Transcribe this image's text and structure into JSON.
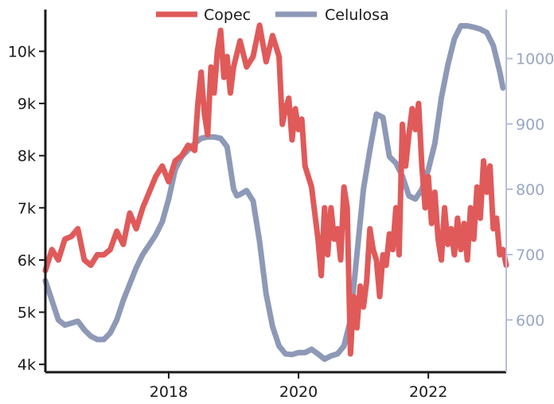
{
  "chart_data": {
    "type": "line",
    "x_range": [
      2016.1,
      2023.2
    ],
    "x_ticks": [
      {
        "value": 2018,
        "label": "2018"
      },
      {
        "value": 2020,
        "label": "2020"
      },
      {
        "value": 2022,
        "label": "2022"
      }
    ],
    "left_axis": {
      "ylim": [
        3850,
        10800
      ],
      "ticks": [
        {
          "value": 4000,
          "label": "4k"
        },
        {
          "value": 5000,
          "label": "5k"
        },
        {
          "value": 6000,
          "label": "6k"
        },
        {
          "value": 7000,
          "label": "7k"
        },
        {
          "value": 8000,
          "label": "8k"
        },
        {
          "value": 9000,
          "label": "9k"
        },
        {
          "value": 10000,
          "label": "10k"
        }
      ],
      "color": "#1a1a1a"
    },
    "right_axis": {
      "ylim": [
        520,
        1075
      ],
      "ticks": [
        {
          "value": 600,
          "label": "600"
        },
        {
          "value": 700,
          "label": "700"
        },
        {
          "value": 800,
          "label": "800"
        },
        {
          "value": 900,
          "label": "900"
        },
        {
          "value": 1000,
          "label": "1000"
        }
      ],
      "color": "#b8bfd6"
    },
    "legend": {
      "placement": "top-center"
    },
    "series": [
      {
        "name": "Copec",
        "axis": "left",
        "color": "#e05a5a",
        "points": [
          [
            2016.1,
            5800
          ],
          [
            2016.2,
            6200
          ],
          [
            2016.3,
            6000
          ],
          [
            2016.4,
            6400
          ],
          [
            2016.5,
            6450
          ],
          [
            2016.6,
            6600
          ],
          [
            2016.7,
            6000
          ],
          [
            2016.8,
            5900
          ],
          [
            2016.9,
            6100
          ],
          [
            2017.0,
            6100
          ],
          [
            2017.1,
            6200
          ],
          [
            2017.2,
            6550
          ],
          [
            2017.3,
            6300
          ],
          [
            2017.4,
            6900
          ],
          [
            2017.5,
            6600
          ],
          [
            2017.6,
            7000
          ],
          [
            2017.7,
            7300
          ],
          [
            2017.8,
            7600
          ],
          [
            2017.9,
            7800
          ],
          [
            2018.0,
            7500
          ],
          [
            2018.1,
            7900
          ],
          [
            2018.2,
            8000
          ],
          [
            2018.3,
            8200
          ],
          [
            2018.4,
            8100
          ],
          [
            2018.45,
            9000
          ],
          [
            2018.5,
            9600
          ],
          [
            2018.55,
            8800
          ],
          [
            2018.6,
            8400
          ],
          [
            2018.65,
            9700
          ],
          [
            2018.7,
            9200
          ],
          [
            2018.75,
            10000
          ],
          [
            2018.8,
            10400
          ],
          [
            2018.85,
            9500
          ],
          [
            2018.9,
            9900
          ],
          [
            2018.95,
            9200
          ],
          [
            2019.0,
            9700
          ],
          [
            2019.1,
            10200
          ],
          [
            2019.2,
            9700
          ],
          [
            2019.3,
            9900
          ],
          [
            2019.4,
            10500
          ],
          [
            2019.5,
            9800
          ],
          [
            2019.6,
            10300
          ],
          [
            2019.7,
            9900
          ],
          [
            2019.75,
            8600
          ],
          [
            2019.8,
            8900
          ],
          [
            2019.85,
            9100
          ],
          [
            2019.9,
            8300
          ],
          [
            2019.95,
            8900
          ],
          [
            2020.0,
            8500
          ],
          [
            2020.05,
            8700
          ],
          [
            2020.1,
            7800
          ],
          [
            2020.2,
            7400
          ],
          [
            2020.3,
            6400
          ],
          [
            2020.35,
            5700
          ],
          [
            2020.4,
            7000
          ],
          [
            2020.45,
            6100
          ],
          [
            2020.5,
            7000
          ],
          [
            2020.55,
            6400
          ],
          [
            2020.6,
            6600
          ],
          [
            2020.65,
            6000
          ],
          [
            2020.7,
            7400
          ],
          [
            2020.75,
            7000
          ],
          [
            2020.8,
            4200
          ],
          [
            2020.85,
            5300
          ],
          [
            2020.9,
            4700
          ],
          [
            2020.95,
            5500
          ],
          [
            2021.0,
            5100
          ],
          [
            2021.05,
            5600
          ],
          [
            2021.1,
            6600
          ],
          [
            2021.15,
            6200
          ],
          [
            2021.2,
            6000
          ],
          [
            2021.25,
            5300
          ],
          [
            2021.3,
            6100
          ],
          [
            2021.35,
            5900
          ],
          [
            2021.4,
            6500
          ],
          [
            2021.45,
            6200
          ],
          [
            2021.5,
            7000
          ],
          [
            2021.55,
            6100
          ],
          [
            2021.6,
            8600
          ],
          [
            2021.65,
            7800
          ],
          [
            2021.7,
            8400
          ],
          [
            2021.75,
            8900
          ],
          [
            2021.8,
            8500
          ],
          [
            2021.85,
            9000
          ],
          [
            2021.9,
            7800
          ],
          [
            2021.95,
            7000
          ],
          [
            2022.0,
            7600
          ],
          [
            2022.05,
            6700
          ],
          [
            2022.1,
            7300
          ],
          [
            2022.15,
            6400
          ],
          [
            2022.2,
            6000
          ],
          [
            2022.25,
            7000
          ],
          [
            2022.3,
            6300
          ],
          [
            2022.35,
            6600
          ],
          [
            2022.4,
            6100
          ],
          [
            2022.45,
            6800
          ],
          [
            2022.5,
            6200
          ],
          [
            2022.55,
            6700
          ],
          [
            2022.6,
            6000
          ],
          [
            2022.65,
            7000
          ],
          [
            2022.7,
            6400
          ],
          [
            2022.75,
            7400
          ],
          [
            2022.8,
            6800
          ],
          [
            2022.85,
            7900
          ],
          [
            2022.9,
            7300
          ],
          [
            2022.95,
            7800
          ],
          [
            2023.0,
            6600
          ],
          [
            2023.05,
            6800
          ],
          [
            2023.1,
            6100
          ],
          [
            2023.15,
            6200
          ],
          [
            2023.2,
            5900
          ]
        ]
      },
      {
        "name": "Celulosa",
        "axis": "right",
        "color": "#8e99b7",
        "points": [
          [
            2016.1,
            660
          ],
          [
            2016.2,
            630
          ],
          [
            2016.3,
            600
          ],
          [
            2016.4,
            592
          ],
          [
            2016.5,
            595
          ],
          [
            2016.6,
            598
          ],
          [
            2016.7,
            585
          ],
          [
            2016.8,
            575
          ],
          [
            2016.9,
            570
          ],
          [
            2017.0,
            570
          ],
          [
            2017.1,
            580
          ],
          [
            2017.2,
            600
          ],
          [
            2017.3,
            630
          ],
          [
            2017.4,
            655
          ],
          [
            2017.5,
            680
          ],
          [
            2017.6,
            700
          ],
          [
            2017.7,
            715
          ],
          [
            2017.8,
            730
          ],
          [
            2017.9,
            750
          ],
          [
            2018.0,
            785
          ],
          [
            2018.1,
            830
          ],
          [
            2018.2,
            850
          ],
          [
            2018.3,
            860
          ],
          [
            2018.4,
            870
          ],
          [
            2018.5,
            878
          ],
          [
            2018.6,
            880
          ],
          [
            2018.7,
            880
          ],
          [
            2018.8,
            878
          ],
          [
            2018.9,
            865
          ],
          [
            2019.0,
            800
          ],
          [
            2019.05,
            790
          ],
          [
            2019.1,
            792
          ],
          [
            2019.2,
            798
          ],
          [
            2019.3,
            782
          ],
          [
            2019.4,
            720
          ],
          [
            2019.5,
            640
          ],
          [
            2019.6,
            590
          ],
          [
            2019.7,
            560
          ],
          [
            2019.8,
            548
          ],
          [
            2019.9,
            547
          ],
          [
            2020.0,
            550
          ],
          [
            2020.1,
            550
          ],
          [
            2020.2,
            555
          ],
          [
            2020.3,
            548
          ],
          [
            2020.4,
            540
          ],
          [
            2020.5,
            545
          ],
          [
            2020.6,
            548
          ],
          [
            2020.7,
            560
          ],
          [
            2020.8,
            600
          ],
          [
            2020.9,
            700
          ],
          [
            2021.0,
            800
          ],
          [
            2021.1,
            860
          ],
          [
            2021.2,
            915
          ],
          [
            2021.3,
            910
          ],
          [
            2021.35,
            880
          ],
          [
            2021.4,
            850
          ],
          [
            2021.5,
            840
          ],
          [
            2021.6,
            820
          ],
          [
            2021.7,
            790
          ],
          [
            2021.8,
            785
          ],
          [
            2021.9,
            800
          ],
          [
            2022.0,
            830
          ],
          [
            2022.1,
            870
          ],
          [
            2022.2,
            940
          ],
          [
            2022.3,
            990
          ],
          [
            2022.4,
            1030
          ],
          [
            2022.5,
            1050
          ],
          [
            2022.6,
            1050
          ],
          [
            2022.7,
            1048
          ],
          [
            2022.8,
            1045
          ],
          [
            2022.9,
            1040
          ],
          [
            2023.0,
            1020
          ],
          [
            2023.1,
            980
          ],
          [
            2023.15,
            955
          ]
        ]
      }
    ]
  }
}
